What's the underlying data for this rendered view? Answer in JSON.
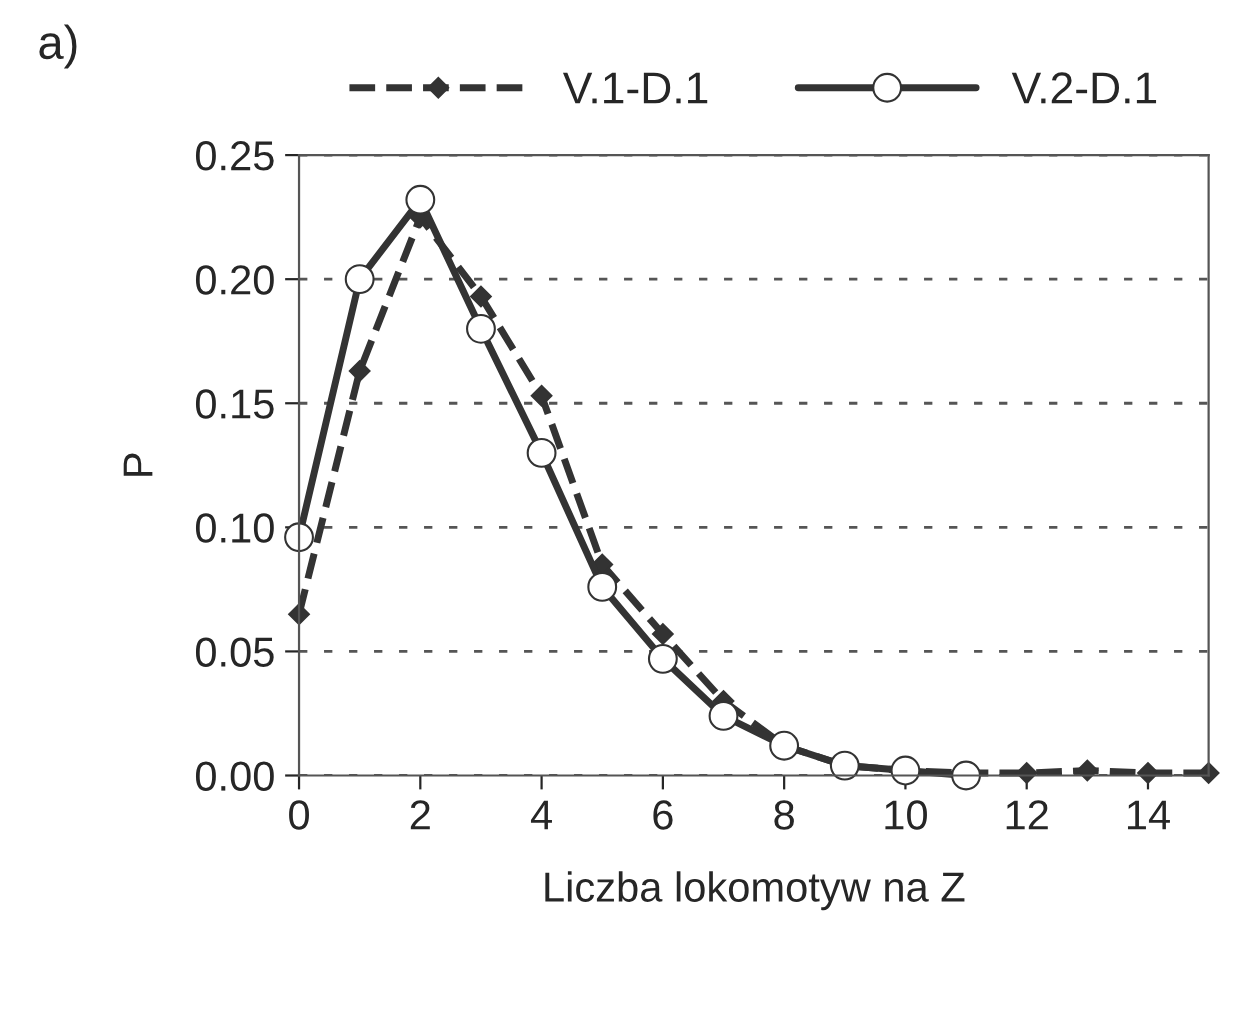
{
  "chart_data": {
    "type": "line",
    "title": "a)",
    "xlabel": "Liczba lokomotyw na Z",
    "ylabel": "P",
    "x": [
      0,
      1,
      2,
      3,
      4,
      5,
      6,
      7,
      8,
      9,
      10,
      11,
      12,
      13,
      14,
      15
    ],
    "series": [
      {
        "name": "V.1-D.1",
        "color": "#333333",
        "marker": "diamond",
        "line_style": "dashed",
        "values": [
          0.065,
          0.163,
          0.225,
          0.193,
          0.153,
          0.085,
          0.057,
          0.03,
          0.012,
          0.004,
          0.002,
          0.001,
          0.001,
          0.002,
          0.001,
          0.001
        ]
      },
      {
        "name": "V.2-D.1",
        "color": "#333333",
        "marker": "circle",
        "line_style": "solid",
        "values": [
          0.096,
          0.2,
          0.232,
          0.18,
          0.13,
          0.076,
          0.047,
          0.024,
          0.012,
          0.004,
          0.002,
          0.0,
          null,
          null,
          null,
          null
        ]
      }
    ],
    "xlim": [
      0,
      15
    ],
    "xticks": [
      0,
      2,
      4,
      6,
      8,
      10,
      12,
      14
    ],
    "ylim": [
      0,
      0.25
    ],
    "yticks": [
      {
        "value": 0,
        "label": "0.00"
      },
      {
        "value": 0.05,
        "label": "0.05"
      },
      {
        "value": 0.1,
        "label": "0.10"
      },
      {
        "value": 0.15,
        "label": "0.15"
      },
      {
        "value": 0.2,
        "label": "0.20"
      },
      {
        "value": 0.25,
        "label": "0.25"
      }
    ],
    "grid": "y",
    "legend": "top"
  }
}
